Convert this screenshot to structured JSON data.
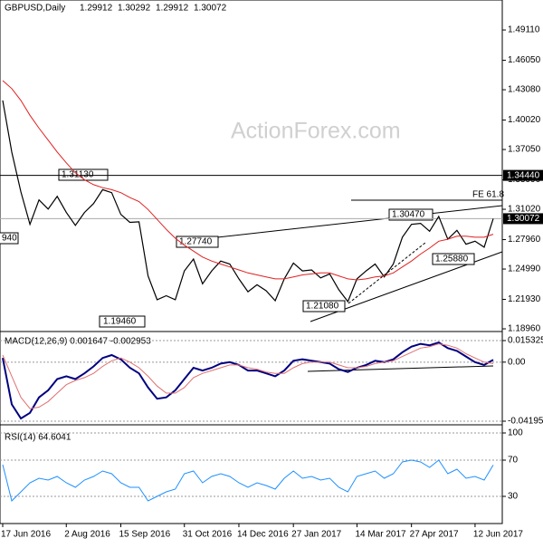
{
  "chart_data": {
    "type": "line",
    "title": "GBPUSD,Daily",
    "ohlc": [
      1.29912,
      1.30292,
      1.29912,
      1.30072
    ],
    "watermark": "ActionForex.com",
    "categories": [
      "17 Jun 2016",
      null,
      null,
      null,
      null,
      null,
      null,
      "2 Aug 2016",
      null,
      null,
      null,
      null,
      null,
      "15 Sep 2016",
      null,
      null,
      null,
      null,
      null,
      null,
      "31 Oct 2016",
      null,
      null,
      null,
      null,
      null,
      "14 Dec 2016",
      null,
      null,
      null,
      null,
      null,
      "27 Jan 2017",
      null,
      null,
      null,
      null,
      null,
      null,
      "14 Mar 2017",
      null,
      null,
      null,
      null,
      null,
      "27 Apr 2017",
      null,
      null,
      null,
      null,
      null,
      null,
      "12 Jun 2017",
      null,
      null
    ],
    "series": [
      {
        "name": "GBPUSD",
        "color": "#000000",
        "values": [
          1.42,
          1.3679,
          1.3277,
          1.295,
          1.3197,
          1.3104,
          1.3232,
          1.307,
          1.294,
          1.307,
          1.316,
          1.33,
          1.327,
          1.305,
          1.297,
          1.2975,
          1.243,
          1.219,
          1.223,
          1.219,
          1.248,
          1.26,
          1.235,
          1.248,
          1.258,
          1.255,
          1.24,
          1.227,
          1.234,
          1.228,
          1.218,
          1.24,
          1.256,
          1.248,
          1.249,
          1.241,
          1.245,
          1.229,
          1.217,
          1.24,
          1.248,
          1.255,
          1.242,
          1.255,
          1.282,
          1.295,
          1.296,
          1.288,
          1.303,
          1.28,
          1.289,
          1.275,
          1.278,
          1.272,
          1.30072
        ]
      },
      {
        "name": "MA",
        "color": "#e02020",
        "values": [
          1.44,
          1.432,
          1.42,
          1.405,
          1.392,
          1.38,
          1.368,
          1.357,
          1.347,
          1.34,
          1.335,
          1.332,
          1.33,
          1.327,
          1.322,
          1.318,
          1.31,
          1.3,
          1.29,
          1.281,
          1.274,
          1.268,
          1.262,
          1.258,
          1.255,
          1.252,
          1.249,
          1.246,
          1.244,
          1.242,
          1.24,
          1.24,
          1.242,
          1.244,
          1.245,
          1.246,
          1.246,
          1.243,
          1.24,
          1.239,
          1.24,
          1.242,
          1.243,
          1.246,
          1.252,
          1.258,
          1.265,
          1.271,
          1.278,
          1.28,
          1.283,
          1.283,
          1.282,
          1.282,
          1.285
        ]
      }
    ],
    "ylim": [
      1.1878,
      1.5195
    ],
    "yticks": [
      {
        "value": 1.4911,
        "label": "1.49110"
      },
      {
        "value": 1.4605,
        "label": "1.46050"
      },
      {
        "value": 1.4308,
        "label": "1.43080"
      },
      {
        "value": 1.4002,
        "label": "1.40020"
      },
      {
        "value": 1.3705,
        "label": "1.37050"
      },
      {
        "value": 1.3399,
        "label": "1.33990"
      },
      {
        "value": 1.3102,
        "label": "1.31020"
      },
      {
        "value": 1.2796,
        "label": "1.27960"
      },
      {
        "value": 1.2499,
        "label": "1.24990"
      },
      {
        "value": 1.2193,
        "label": "1.21930"
      },
      {
        "value": 1.1896,
        "label": "1.18960"
      }
    ],
    "levels": [
      {
        "value": 1.3444,
        "label": "1.34440",
        "color": "#000000"
      },
      {
        "value": 1.30072,
        "label": "1.30072",
        "color": "#aaaaaa"
      }
    ],
    "annotations": [
      "1.31130",
      "1.30470",
      "1.27740",
      "1.25880",
      "1.21080",
      "1.19460",
      "940",
      "FE 61.8"
    ],
    "macd": {
      "title": "MACD(12,26,9) 0.001647 -0.002953",
      "ylim": [
        -0.04324,
        0.02112
      ],
      "yticks": [
        {
          "value": 0.015325,
          "label": "0.015325"
        },
        {
          "value": 0,
          "label": "0.00"
        },
        {
          "value": -0.041957,
          "label": "-0.041957"
        }
      ],
      "series": [
        {
          "name": "MACD",
          "color": "#000080",
          "values": [
            0.003,
            -0.03,
            -0.04,
            -0.036,
            -0.025,
            -0.02,
            -0.012,
            -0.01,
            -0.012,
            -0.008,
            -0.003,
            0.003,
            0.005,
            0.002,
            -0.004,
            -0.008,
            -0.018,
            -0.026,
            -0.025,
            -0.02,
            -0.012,
            -0.004,
            -0.006,
            -0.004,
            -0.001,
            0,
            -0.002,
            -0.006,
            -0.006,
            -0.008,
            -0.01,
            -0.006,
            0.001,
            0.002,
            0.001,
            0,
            -0.001,
            -0.005,
            -0.007,
            -0.004,
            -0.002,
            0.001,
            0,
            0.002,
            0.007,
            0.011,
            0.013,
            0.012,
            0.014,
            0.01,
            0.008,
            0.004,
            0,
            -0.002,
            0.001647
          ]
        },
        {
          "name": "Signal",
          "color": "#e07070",
          "values": [
            0.005,
            -0.01,
            -0.025,
            -0.033,
            -0.032,
            -0.028,
            -0.022,
            -0.016,
            -0.013,
            -0.011,
            -0.008,
            -0.003,
            0.001,
            0.003,
            0,
            -0.004,
            -0.01,
            -0.017,
            -0.022,
            -0.022,
            -0.018,
            -0.011,
            -0.008,
            -0.006,
            -0.004,
            -0.002,
            -0.002,
            -0.004,
            -0.005,
            -0.007,
            -0.008,
            -0.008,
            -0.004,
            -0.001,
            0,
            0,
            0,
            -0.002,
            -0.004,
            -0.004,
            -0.003,
            -0.001,
            0,
            0.001,
            0.004,
            0.007,
            0.01,
            0.011,
            0.013,
            0.012,
            0.01,
            0.006,
            0.003,
            0,
            -0.001
          ]
        }
      ]
    },
    "rsi": {
      "title": "RSI(14) 64.6041",
      "ylim": [
        0,
        108
      ],
      "yticks": [
        100,
        70,
        30
      ],
      "series": [
        {
          "name": "RSI",
          "color": "#1e90ff",
          "values": [
            65,
            25,
            35,
            45,
            50,
            48,
            52,
            45,
            40,
            48,
            52,
            58,
            55,
            45,
            40,
            40,
            25,
            30,
            35,
            38,
            55,
            58,
            45,
            52,
            55,
            52,
            45,
            40,
            45,
            42,
            38,
            50,
            58,
            50,
            52,
            48,
            50,
            40,
            35,
            52,
            55,
            58,
            50,
            55,
            68,
            70,
            68,
            62,
            70,
            55,
            60,
            50,
            52,
            48,
            64.6041
          ]
        }
      ]
    }
  }
}
